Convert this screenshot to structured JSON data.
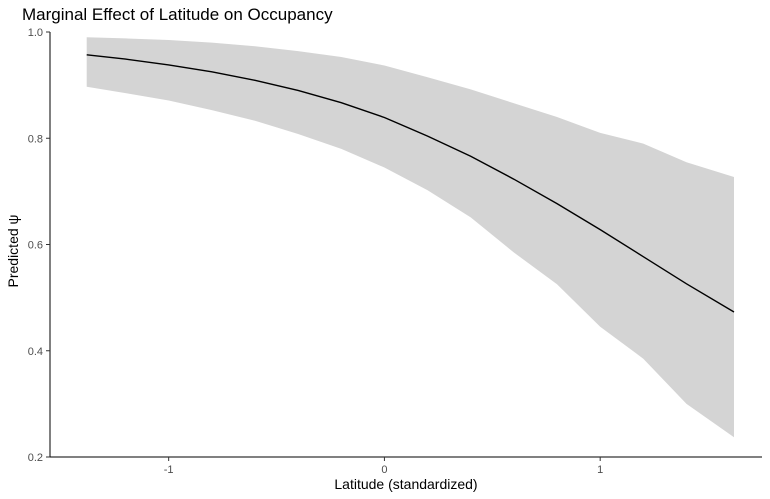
{
  "chart_data": {
    "type": "line",
    "title": "Marginal Effect of Latitude on Occupancy",
    "xlabel": "Latitude (standardized)",
    "ylabel": "Predicted ψ",
    "xlim": [
      -1.55,
      1.75
    ],
    "ylim": [
      0.2,
      1.0
    ],
    "x_ticks": [
      -1,
      0,
      1
    ],
    "x_tick_labels": [
      "-1",
      "0",
      "1"
    ],
    "y_ticks": [
      0.2,
      0.4,
      0.6,
      0.8,
      1.0
    ],
    "y_tick_labels": [
      "0.2",
      "0.4",
      "0.6",
      "0.8",
      "1.0"
    ],
    "grid": false,
    "legend": "none",
    "colors": {
      "line": "#000000",
      "ribbon": "#d4d4d4"
    },
    "series": [
      {
        "x": [
          -1.38,
          -1.2,
          -1.0,
          -0.8,
          -0.6,
          -0.4,
          -0.2,
          0.0,
          0.2,
          0.4,
          0.6,
          0.8,
          1.0,
          1.2,
          1.4,
          1.62
        ],
        "y": [
          0.957,
          0.949,
          0.938,
          0.925,
          0.909,
          0.89,
          0.867,
          0.839,
          0.804,
          0.766,
          0.723,
          0.677,
          0.628,
          0.577,
          0.526,
          0.473
        ],
        "lower": [
          0.897,
          0.885,
          0.871,
          0.853,
          0.833,
          0.808,
          0.78,
          0.745,
          0.702,
          0.651,
          0.585,
          0.525,
          0.445,
          0.385,
          0.3,
          0.237
        ],
        "upper": [
          0.99,
          0.988,
          0.985,
          0.98,
          0.973,
          0.964,
          0.953,
          0.937,
          0.915,
          0.892,
          0.866,
          0.84,
          0.81,
          0.79,
          0.755,
          0.727
        ]
      }
    ]
  }
}
